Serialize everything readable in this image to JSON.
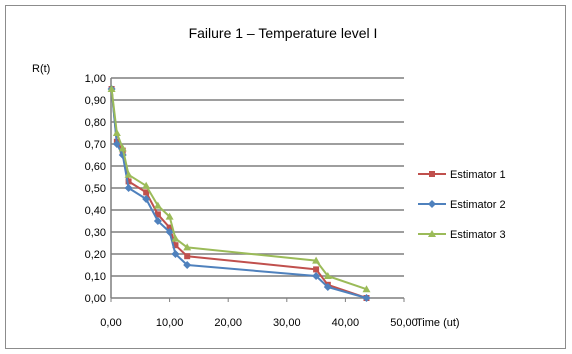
{
  "chart_data": {
    "type": "line",
    "title": "Failure 1 – Temperature level I",
    "xlabel": "Time (ut)",
    "ylabel": "R(t)",
    "xlim": [
      0,
      50
    ],
    "ylim": [
      0,
      1
    ],
    "x_ticks": [
      "0,00",
      "10,00",
      "20,00",
      "30,00",
      "40,00",
      "50,00"
    ],
    "y_ticks": [
      "0,00",
      "0,10",
      "0,20",
      "0,30",
      "0,40",
      "0,50",
      "0,60",
      "0,70",
      "0,80",
      "0,90",
      "1,00"
    ],
    "grid": "horizontal",
    "legend_position": "right",
    "series": [
      {
        "name": "Estimator 1",
        "color": "#c0504d",
        "marker": "square",
        "points": [
          [
            0.1,
            0.95
          ],
          [
            1.0,
            0.71
          ],
          [
            2.0,
            0.67
          ],
          [
            3.0,
            0.53
          ],
          [
            6.0,
            0.48
          ],
          [
            8.0,
            0.38
          ],
          [
            10.0,
            0.32
          ],
          [
            11.0,
            0.24
          ],
          [
            13.0,
            0.19
          ],
          [
            35.0,
            0.13
          ],
          [
            37.0,
            0.06
          ],
          [
            43.6,
            0.0
          ]
        ]
      },
      {
        "name": "Estimator 2",
        "color": "#4f81bd",
        "marker": "diamond",
        "points": [
          [
            0.1,
            0.95
          ],
          [
            1.0,
            0.7
          ],
          [
            2.0,
            0.65
          ],
          [
            3.0,
            0.5
          ],
          [
            6.0,
            0.45
          ],
          [
            8.0,
            0.35
          ],
          [
            10.0,
            0.3
          ],
          [
            11.0,
            0.2
          ],
          [
            13.0,
            0.15
          ],
          [
            35.0,
            0.1
          ],
          [
            37.0,
            0.05
          ],
          [
            43.6,
            0.0
          ]
        ]
      },
      {
        "name": "Estimator 3",
        "color": "#9bbb59",
        "marker": "triangle",
        "points": [
          [
            0.1,
            0.95
          ],
          [
            1.0,
            0.75
          ],
          [
            2.0,
            0.68
          ],
          [
            3.0,
            0.56
          ],
          [
            6.0,
            0.51
          ],
          [
            8.0,
            0.42
          ],
          [
            10.0,
            0.37
          ],
          [
            11.0,
            0.27
          ],
          [
            13.0,
            0.23
          ],
          [
            35.0,
            0.17
          ],
          [
            37.0,
            0.1
          ],
          [
            43.6,
            0.04
          ]
        ]
      }
    ]
  }
}
